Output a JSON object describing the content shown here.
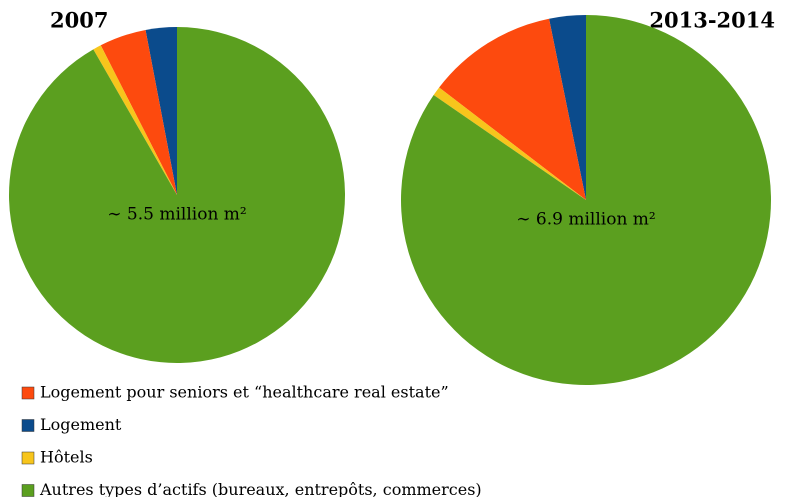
{
  "chart_data": [
    {
      "type": "pie",
      "title": "2007",
      "categories": [
        "Logement pour seniors et “healthcare real estate”",
        "Logement",
        "Hôtels",
        "Autres types d’actifs (bureaux, entrepôts, commerces)"
      ],
      "values": [
        4.5,
        3,
        0.8,
        91.7
      ],
      "colors": [
        "#fd4a0e",
        "#0b4b8c",
        "#f7c51c",
        "#5b9f1f"
      ],
      "annotation": "∼ 5.5 million m²"
    },
    {
      "type": "pie",
      "title": "2013-2014",
      "categories": [
        "Logement pour seniors et “healthcare real estate”",
        "Logement",
        "Hôtels",
        "Autres types d’actifs (bureaux, entrepôts, commerces)"
      ],
      "values": [
        11.4,
        3.2,
        0.8,
        84.6
      ],
      "colors": [
        "#fd4a0e",
        "#0b4b8c",
        "#f7c51c",
        "#5b9f1f"
      ],
      "annotation": "∼ 6.9 million m²"
    }
  ]
}
